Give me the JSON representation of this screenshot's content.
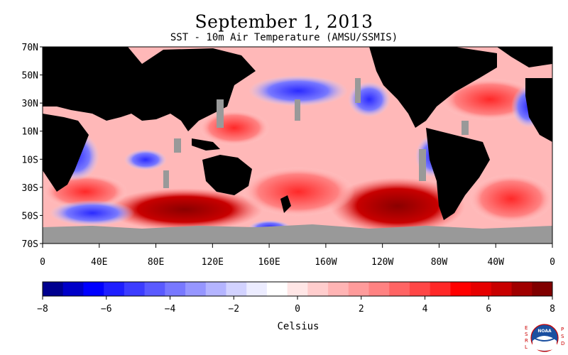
{
  "title": "September 1, 2013",
  "subtitle": "SST - 10m Air Temperature (AMSU/SSMIS)",
  "lat_labels": [
    "70N",
    "50N",
    "30N",
    "10N",
    "10S",
    "30S",
    "50S",
    "70S"
  ],
  "lon_labels": [
    "0",
    "40E",
    "80E",
    "120E",
    "160E",
    "160W",
    "120W",
    "80W",
    "40W",
    "0"
  ],
  "colorbar": {
    "label": "Celsius",
    "ticks": [
      "-8",
      "-6",
      "-4",
      "-2",
      "0",
      "2",
      "4",
      "6",
      "8"
    ],
    "range": [
      -8,
      8
    ],
    "colors": [
      "#00008f",
      "#0000c8",
      "#0000ff",
      "#1e1eff",
      "#3c3cff",
      "#5a5aff",
      "#7878ff",
      "#9696ff",
      "#b4b4ff",
      "#d2d2ff",
      "#ececff",
      "#ffffff",
      "#ffe6e6",
      "#ffcdcd",
      "#ffb4b4",
      "#ff9b9b",
      "#ff8282",
      "#ff6464",
      "#ff4646",
      "#ff2828",
      "#ff0000",
      "#e60000",
      "#c80000",
      "#a00000",
      "#800000"
    ]
  },
  "map_colors": {
    "land": "#000000",
    "no_data": "#999999",
    "warm": "#ff0000",
    "cool": "#0000ff"
  },
  "logo": {
    "left_letters": "ESRL",
    "right_letters": "PSD",
    "center_text": "NOAA"
  }
}
